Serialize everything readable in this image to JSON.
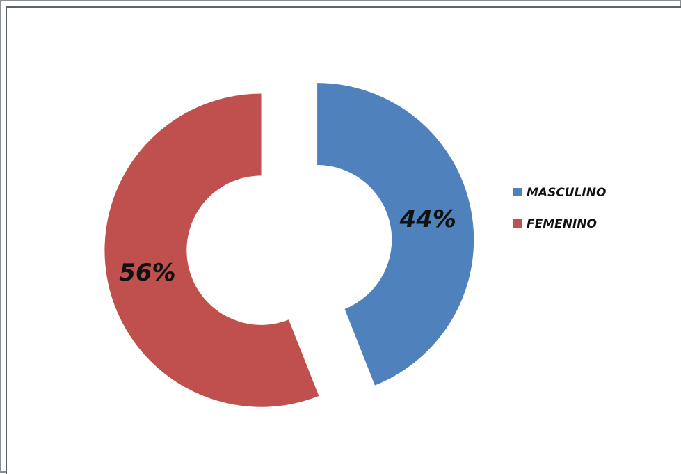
{
  "chart_data": {
    "type": "pie",
    "variant": "doughnut-exploded",
    "title": "",
    "categories": [
      "MASCULINO",
      "FEMENINO"
    ],
    "values": [
      44,
      56
    ],
    "value_labels": [
      "44%",
      "56%"
    ],
    "colors": [
      "#4f81bd",
      "#c0504d"
    ],
    "legend": {
      "placement": "right",
      "entries": [
        "MASCULINO",
        "FEMENINO"
      ]
    }
  }
}
